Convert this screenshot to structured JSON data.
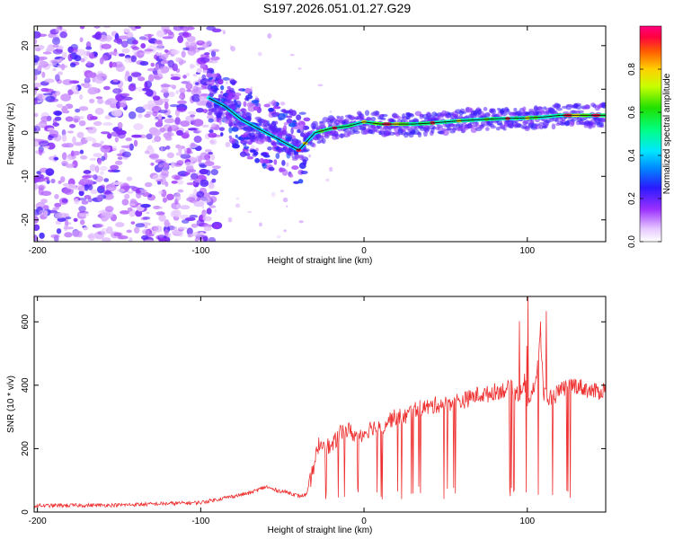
{
  "title": "S197.2026.051.01.27.G29",
  "chart_data": [
    {
      "type": "heatmap",
      "title": "S197.2026.051.01.27.G29",
      "xlabel": "Height of straight line (km)",
      "ylabel": "Frequency (Hz)",
      "xlim": [
        -202,
        148
      ],
      "ylim": [
        -25,
        24.5
      ],
      "xticks": [
        "-200",
        "-100",
        "0",
        "100"
      ],
      "yticks": [
        "20",
        "10",
        "0",
        "-10",
        "-20"
      ],
      "colorbar": {
        "label": "Normalized spectral amplitude",
        "range": [
          0,
          1
        ],
        "ticks": [
          "0.0",
          "0.2",
          "0.4",
          "0.6",
          "0.8"
        ]
      },
      "ridge": {
        "x": [
          -95,
          -85,
          -75,
          -65,
          -55,
          -45,
          -40,
          -35,
          -30,
          -20,
          -10,
          0,
          10,
          20,
          30,
          40,
          50,
          60,
          70,
          80,
          90,
          100,
          110,
          120,
          130,
          140,
          148
        ],
        "y": [
          8,
          6,
          3,
          1,
          -1,
          -3,
          -4,
          -2,
          0,
          1,
          1.5,
          2.5,
          2,
          2,
          2,
          2.2,
          2.5,
          2.8,
          3,
          3.2,
          3.3,
          3.4,
          3.6,
          4,
          4,
          4,
          4
        ]
      }
    },
    {
      "type": "line",
      "xlabel": "Height of straight line (km)",
      "ylabel": "SNR (10 * v/v)",
      "xlim": [
        -202,
        148
      ],
      "ylim": [
        0,
        680
      ],
      "xticks": [
        "-200",
        "-100",
        "0",
        "100"
      ],
      "yticks": [
        "0",
        "200",
        "400",
        "600"
      ],
      "series": [
        {
          "name": "SNR",
          "color": "#ee3030",
          "x": [
            -202,
            -150,
            -100,
            -80,
            -70,
            -60,
            -55,
            -50,
            -45,
            -40,
            -35,
            -30,
            -28,
            -25,
            -20,
            -15,
            -10,
            -5,
            0,
            5,
            10,
            15,
            20,
            25,
            30,
            35,
            40,
            45,
            50,
            55,
            60,
            65,
            70,
            75,
            80,
            85,
            90,
            95,
            98,
            100,
            103,
            105,
            108,
            110,
            115,
            120,
            125,
            130,
            135,
            140,
            145,
            148
          ],
          "y": [
            20,
            22,
            30,
            50,
            60,
            80,
            70,
            65,
            60,
            50,
            55,
            160,
            210,
            220,
            200,
            250,
            260,
            240,
            250,
            270,
            260,
            290,
            300,
            300,
            320,
            330,
            330,
            340,
            340,
            350,
            350,
            360,
            370,
            370,
            380,
            385,
            390,
            370,
            420,
            360,
            380,
            390,
            550,
            370,
            360,
            380,
            400,
            400,
            390,
            380,
            380,
            390
          ]
        }
      ]
    }
  ]
}
